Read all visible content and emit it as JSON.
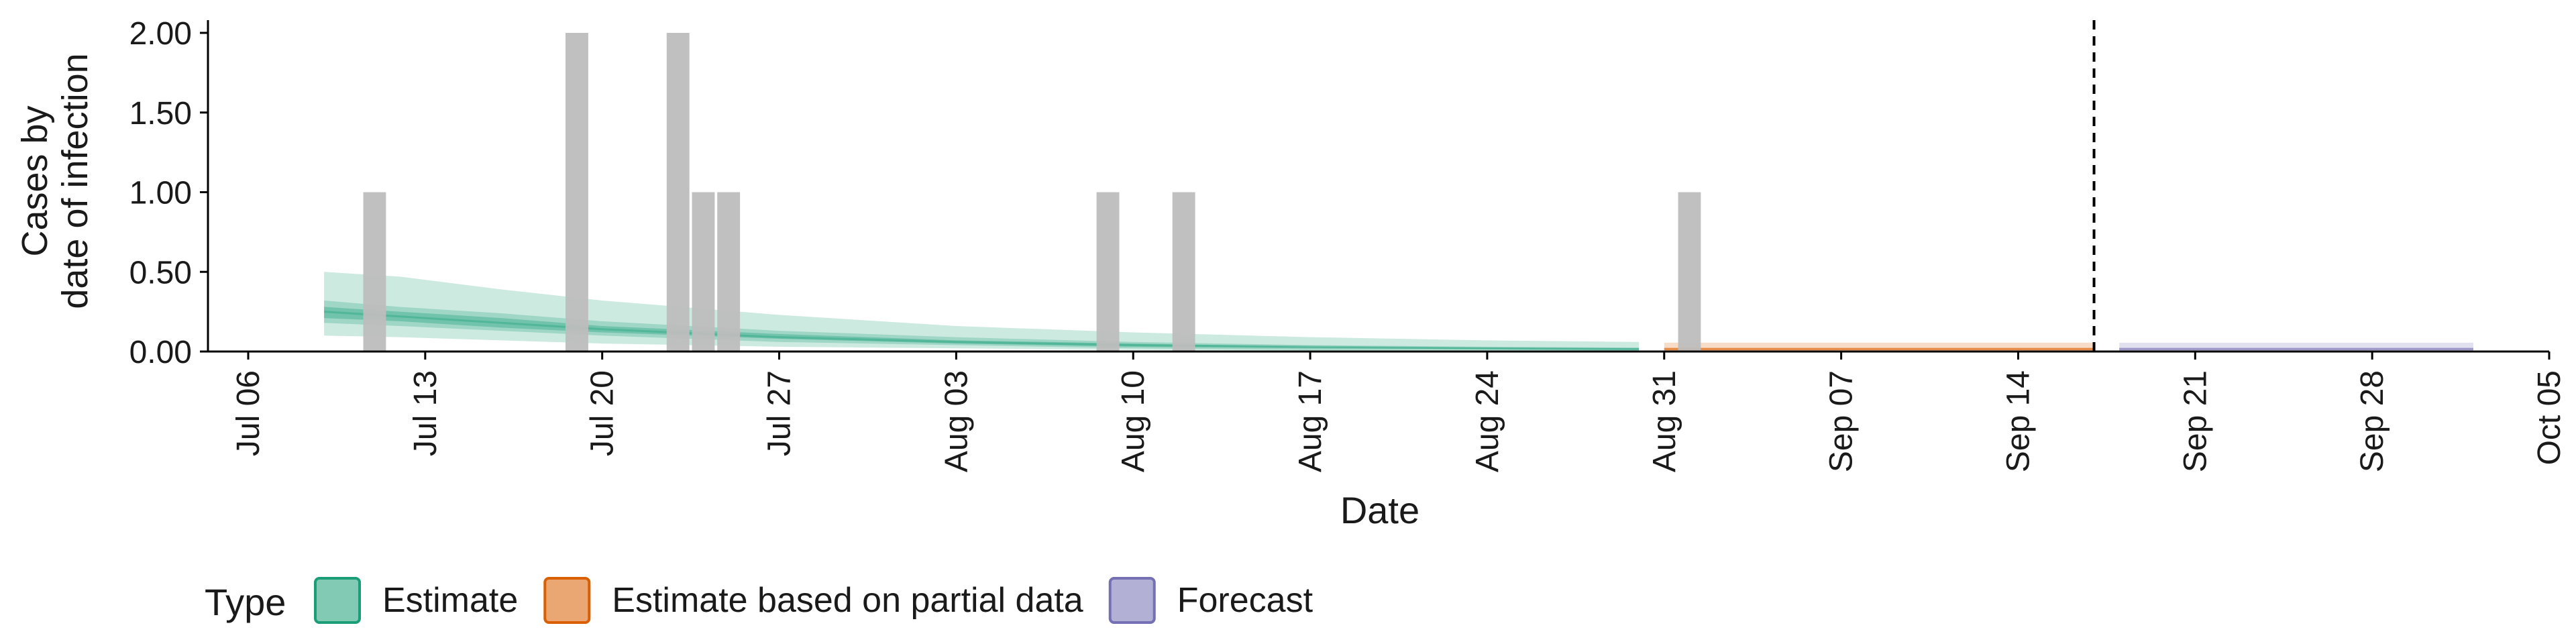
{
  "chart_data": {
    "type": "bar",
    "title": "",
    "xlabel": "Date",
    "ylabel_lines": [
      "Cases by",
      "date of infection"
    ],
    "x_range": [
      "2020-07-06",
      "2020-10-05"
    ],
    "y_range": [
      0,
      2.08
    ],
    "x_ticks": [
      {
        "date": "2020-07-06",
        "label": "Jul 06"
      },
      {
        "date": "2020-07-13",
        "label": "Jul 13"
      },
      {
        "date": "2020-07-20",
        "label": "Jul 20"
      },
      {
        "date": "2020-07-27",
        "label": "Jul 27"
      },
      {
        "date": "2020-08-03",
        "label": "Aug 03"
      },
      {
        "date": "2020-08-10",
        "label": "Aug 10"
      },
      {
        "date": "2020-08-17",
        "label": "Aug 17"
      },
      {
        "date": "2020-08-24",
        "label": "Aug 24"
      },
      {
        "date": "2020-08-31",
        "label": "Aug 31"
      },
      {
        "date": "2020-09-07",
        "label": "Sep 07"
      },
      {
        "date": "2020-09-14",
        "label": "Sep 14"
      },
      {
        "date": "2020-09-21",
        "label": "Sep 21"
      },
      {
        "date": "2020-09-28",
        "label": "Sep 28"
      },
      {
        "date": "2020-10-05",
        "label": "Oct 05"
      }
    ],
    "y_ticks": [
      {
        "value": 0,
        "label": "0.00"
      },
      {
        "value": 0.5,
        "label": "0.50"
      },
      {
        "value": 1,
        "label": "1.00"
      },
      {
        "value": 1.5,
        "label": "1.50"
      },
      {
        "value": 2,
        "label": "2.00"
      }
    ],
    "observed_cases": [
      {
        "date": "2020-07-11",
        "value": 1
      },
      {
        "date": "2020-07-19",
        "value": 2
      },
      {
        "date": "2020-07-23",
        "value": 2
      },
      {
        "date": "2020-07-24",
        "value": 1
      },
      {
        "date": "2020-07-25",
        "value": 1
      },
      {
        "date": "2020-08-09",
        "value": 1
      },
      {
        "date": "2020-08-12",
        "value": 1
      },
      {
        "date": "2020-09-01",
        "value": 1
      }
    ],
    "vline_date": "2020-09-17",
    "grid": false,
    "legend_position": "bottom-left",
    "series": [
      {
        "type_key": "Estimate",
        "color": "#1b9e77",
        "points": [
          {
            "date": "2020-07-09",
            "median": 0.25,
            "lower_20": 0.21,
            "upper_20": 0.28,
            "lower_50": 0.18,
            "upper_50": 0.32,
            "lower_90": 0.1,
            "upper_90": 0.5
          },
          {
            "date": "2020-07-12",
            "median": 0.22,
            "lower_20": 0.19,
            "upper_20": 0.25,
            "lower_50": 0.16,
            "upper_50": 0.28,
            "lower_90": 0.09,
            "upper_90": 0.47
          },
          {
            "date": "2020-07-16",
            "median": 0.18,
            "lower_20": 0.15,
            "upper_20": 0.21,
            "lower_50": 0.13,
            "upper_50": 0.24,
            "lower_90": 0.07,
            "upper_90": 0.39
          },
          {
            "date": "2020-07-20",
            "median": 0.14,
            "lower_20": 0.12,
            "upper_20": 0.16,
            "lower_50": 0.1,
            "upper_50": 0.19,
            "lower_90": 0.05,
            "upper_90": 0.32
          },
          {
            "date": "2020-07-27",
            "median": 0.09,
            "lower_20": 0.08,
            "upper_20": 0.11,
            "lower_50": 0.06,
            "upper_50": 0.13,
            "lower_90": 0.03,
            "upper_90": 0.23
          },
          {
            "date": "2020-08-03",
            "median": 0.06,
            "lower_20": 0.05,
            "upper_20": 0.07,
            "lower_50": 0.04,
            "upper_50": 0.09,
            "lower_90": 0.02,
            "upper_90": 0.16
          },
          {
            "date": "2020-08-10",
            "median": 0.04,
            "lower_20": 0.03,
            "upper_20": 0.05,
            "lower_50": 0.02,
            "upper_50": 0.06,
            "lower_90": 0.01,
            "upper_90": 0.12
          },
          {
            "date": "2020-08-17",
            "median": 0.03,
            "lower_20": 0.02,
            "upper_20": 0.03,
            "lower_50": 0.01,
            "upper_50": 0.04,
            "lower_90": 0.005,
            "upper_90": 0.09
          },
          {
            "date": "2020-08-24",
            "median": 0.02,
            "lower_20": 0.015,
            "upper_20": 0.025,
            "lower_50": 0.01,
            "upper_50": 0.03,
            "lower_90": 0.003,
            "upper_90": 0.07
          },
          {
            "date": "2020-08-30",
            "median": 0.015,
            "lower_20": 0.01,
            "upper_20": 0.02,
            "lower_50": 0.005,
            "upper_50": 0.025,
            "lower_90": 0.002,
            "upper_90": 0.06
          }
        ]
      },
      {
        "type_key": "Estimate based on partial data",
        "color": "#d95f02",
        "points": [
          {
            "date": "2020-08-31",
            "median": 0.015,
            "lower_20": 0.01,
            "upper_20": 0.02,
            "lower_50": 0.006,
            "upper_50": 0.025,
            "lower_90": 0.002,
            "upper_90": 0.055
          },
          {
            "date": "2020-09-17",
            "median": 0.015,
            "lower_20": 0.01,
            "upper_20": 0.02,
            "lower_50": 0.006,
            "upper_50": 0.025,
            "lower_90": 0.002,
            "upper_90": 0.055
          }
        ]
      },
      {
        "type_key": "Forecast",
        "color": "#7570b3",
        "points": [
          {
            "date": "2020-09-18",
            "median": 0.015,
            "lower_20": 0.01,
            "upper_20": 0.02,
            "lower_50": 0.006,
            "upper_50": 0.025,
            "lower_90": 0.002,
            "upper_90": 0.055
          },
          {
            "date": "2020-10-02",
            "median": 0.015,
            "lower_20": 0.01,
            "upper_20": 0.02,
            "lower_50": 0.006,
            "upper_50": 0.025,
            "lower_90": 0.002,
            "upper_90": 0.055
          }
        ]
      }
    ],
    "legend": {
      "title": "Type",
      "items": [
        {
          "label": "Estimate",
          "color": "#1b9e77"
        },
        {
          "label": "Estimate based on partial data",
          "color": "#d95f02"
        },
        {
          "label": "Forecast",
          "color": "#7570b3"
        }
      ]
    },
    "colors": {
      "observed_bar": "#bdbdbd",
      "axis": "#000000",
      "vline": "#000000"
    }
  }
}
